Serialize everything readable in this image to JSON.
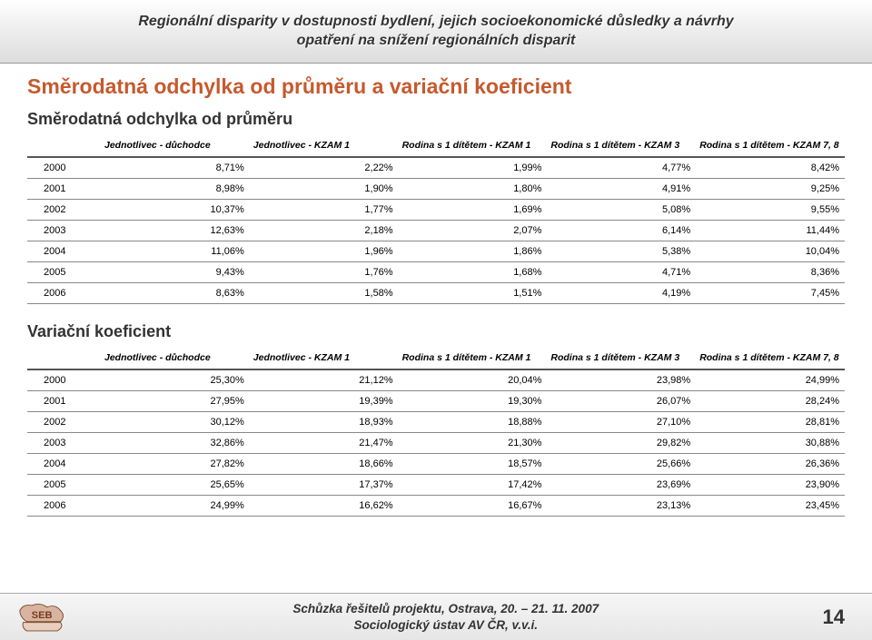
{
  "header": {
    "line1": "Regionální disparity v dostupnosti bydlení, jejich socioekonomické důsledky a návrhy",
    "line2": "opatření na snížení regionálních disparit"
  },
  "main_title": "Směrodatná odchylka od průměru a variační koeficient",
  "table1": {
    "caption": "Směrodatná odchylka od průměru",
    "columns": [
      "",
      "Jednotlivec - důchodce",
      "Jednotlivec - KZAM 1",
      "Rodina s 1 dítětem - KZAM 1",
      "Rodina s 1 dítětem - KZAM 3",
      "Rodina s 1 dítětem - KZAM 7, 8"
    ],
    "rows": [
      [
        "2000",
        "8,71%",
        "2,22%",
        "1,99%",
        "4,77%",
        "8,42%"
      ],
      [
        "2001",
        "8,98%",
        "1,90%",
        "1,80%",
        "4,91%",
        "9,25%"
      ],
      [
        "2002",
        "10,37%",
        "1,77%",
        "1,69%",
        "5,08%",
        "9,55%"
      ],
      [
        "2003",
        "12,63%",
        "2,18%",
        "2,07%",
        "6,14%",
        "11,44%"
      ],
      [
        "2004",
        "11,06%",
        "1,96%",
        "1,86%",
        "5,38%",
        "10,04%"
      ],
      [
        "2005",
        "9,43%",
        "1,76%",
        "1,68%",
        "4,71%",
        "8,36%"
      ],
      [
        "2006",
        "8,63%",
        "1,58%",
        "1,51%",
        "4,19%",
        "7,45%"
      ]
    ]
  },
  "table2": {
    "caption": "Variační koeficient",
    "columns": [
      "",
      "Jednotlivec - důchodce",
      "Jednotlivec - KZAM 1",
      "Rodina s 1 dítětem - KZAM 1",
      "Rodina s 1 dítětem - KZAM 3",
      "Rodina s 1 dítětem - KZAM 7, 8"
    ],
    "rows": [
      [
        "2000",
        "25,30%",
        "21,12%",
        "20,04%",
        "23,98%",
        "24,99%"
      ],
      [
        "2001",
        "27,95%",
        "19,39%",
        "19,30%",
        "26,07%",
        "28,24%"
      ],
      [
        "2002",
        "30,12%",
        "18,93%",
        "18,88%",
        "27,10%",
        "28,81%"
      ],
      [
        "2003",
        "32,86%",
        "21,47%",
        "21,30%",
        "29,82%",
        "30,88%"
      ],
      [
        "2004",
        "27,82%",
        "18,66%",
        "18,57%",
        "25,66%",
        "26,36%"
      ],
      [
        "2005",
        "25,65%",
        "17,37%",
        "17,42%",
        "23,69%",
        "23,90%"
      ],
      [
        "2006",
        "24,99%",
        "16,62%",
        "16,67%",
        "23,13%",
        "23,45%"
      ]
    ]
  },
  "footer": {
    "line1": "Schůzka řešitelů projektu, Ostrava, 20. – 21. 11. 2007",
    "line2": "Sociologický ústav AV ČR, v.v.i.",
    "page_number": "14"
  },
  "colors": {
    "accent": "#c55a2e",
    "text": "#333333",
    "rule": "#888888",
    "header_rule": "#555555"
  }
}
